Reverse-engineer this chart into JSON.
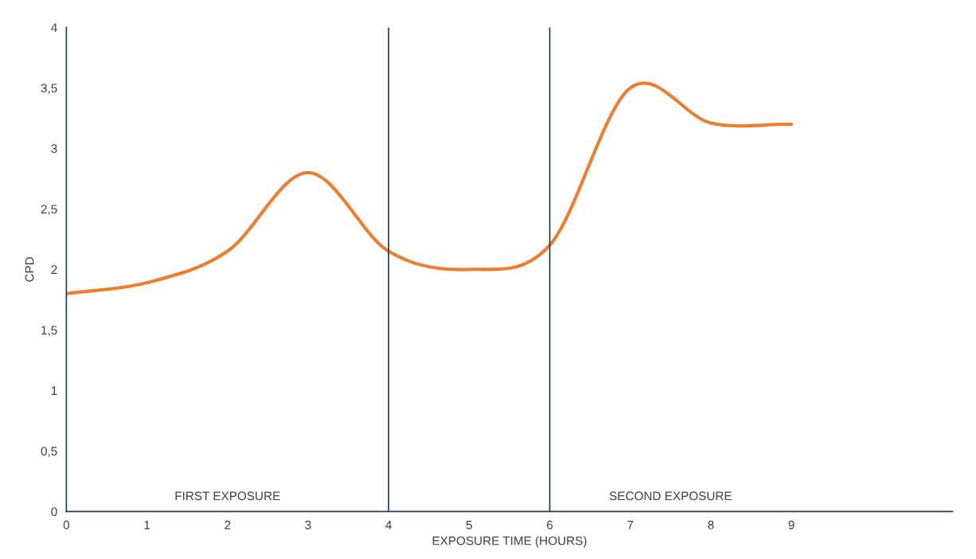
{
  "chart_data": {
    "type": "line",
    "xlabel": "EXPOSURE TIME (HOURS)",
    "ylabel": "CPD",
    "x": [
      0,
      1,
      2,
      3,
      4,
      5,
      6,
      7,
      8,
      9
    ],
    "series": [
      {
        "color": "#ed7d31",
        "values": [
          1.8,
          1.89,
          2.15,
          2.8,
          2.15,
          2.0,
          2.2,
          3.5,
          3.21,
          3.2
        ]
      }
    ],
    "xlim": [
      0,
      11
    ],
    "xticks": [
      0,
      1,
      2,
      3,
      4,
      5,
      6,
      7,
      8,
      9
    ],
    "ylim": [
      0,
      4
    ],
    "yticks": [
      0,
      {
        "value": 0.5,
        "label": "0,5"
      },
      1,
      {
        "value": 1.5,
        "label": "1,5"
      },
      2,
      {
        "value": 2.5,
        "label": "2,5"
      },
      3,
      {
        "value": 3.5,
        "label": "3,5"
      },
      4
    ],
    "ref_lines": [
      {
        "axis": "x",
        "value": 4,
        "color": "#1f3b5c"
      },
      {
        "axis": "x",
        "value": 6,
        "color": "#1f3b5c"
      }
    ],
    "annotations": [
      "FIRST EXPOSURE",
      "SECOND EXPOSURE"
    ],
    "grid": false,
    "legend": false,
    "marker": "none",
    "line_style": "solid"
  }
}
